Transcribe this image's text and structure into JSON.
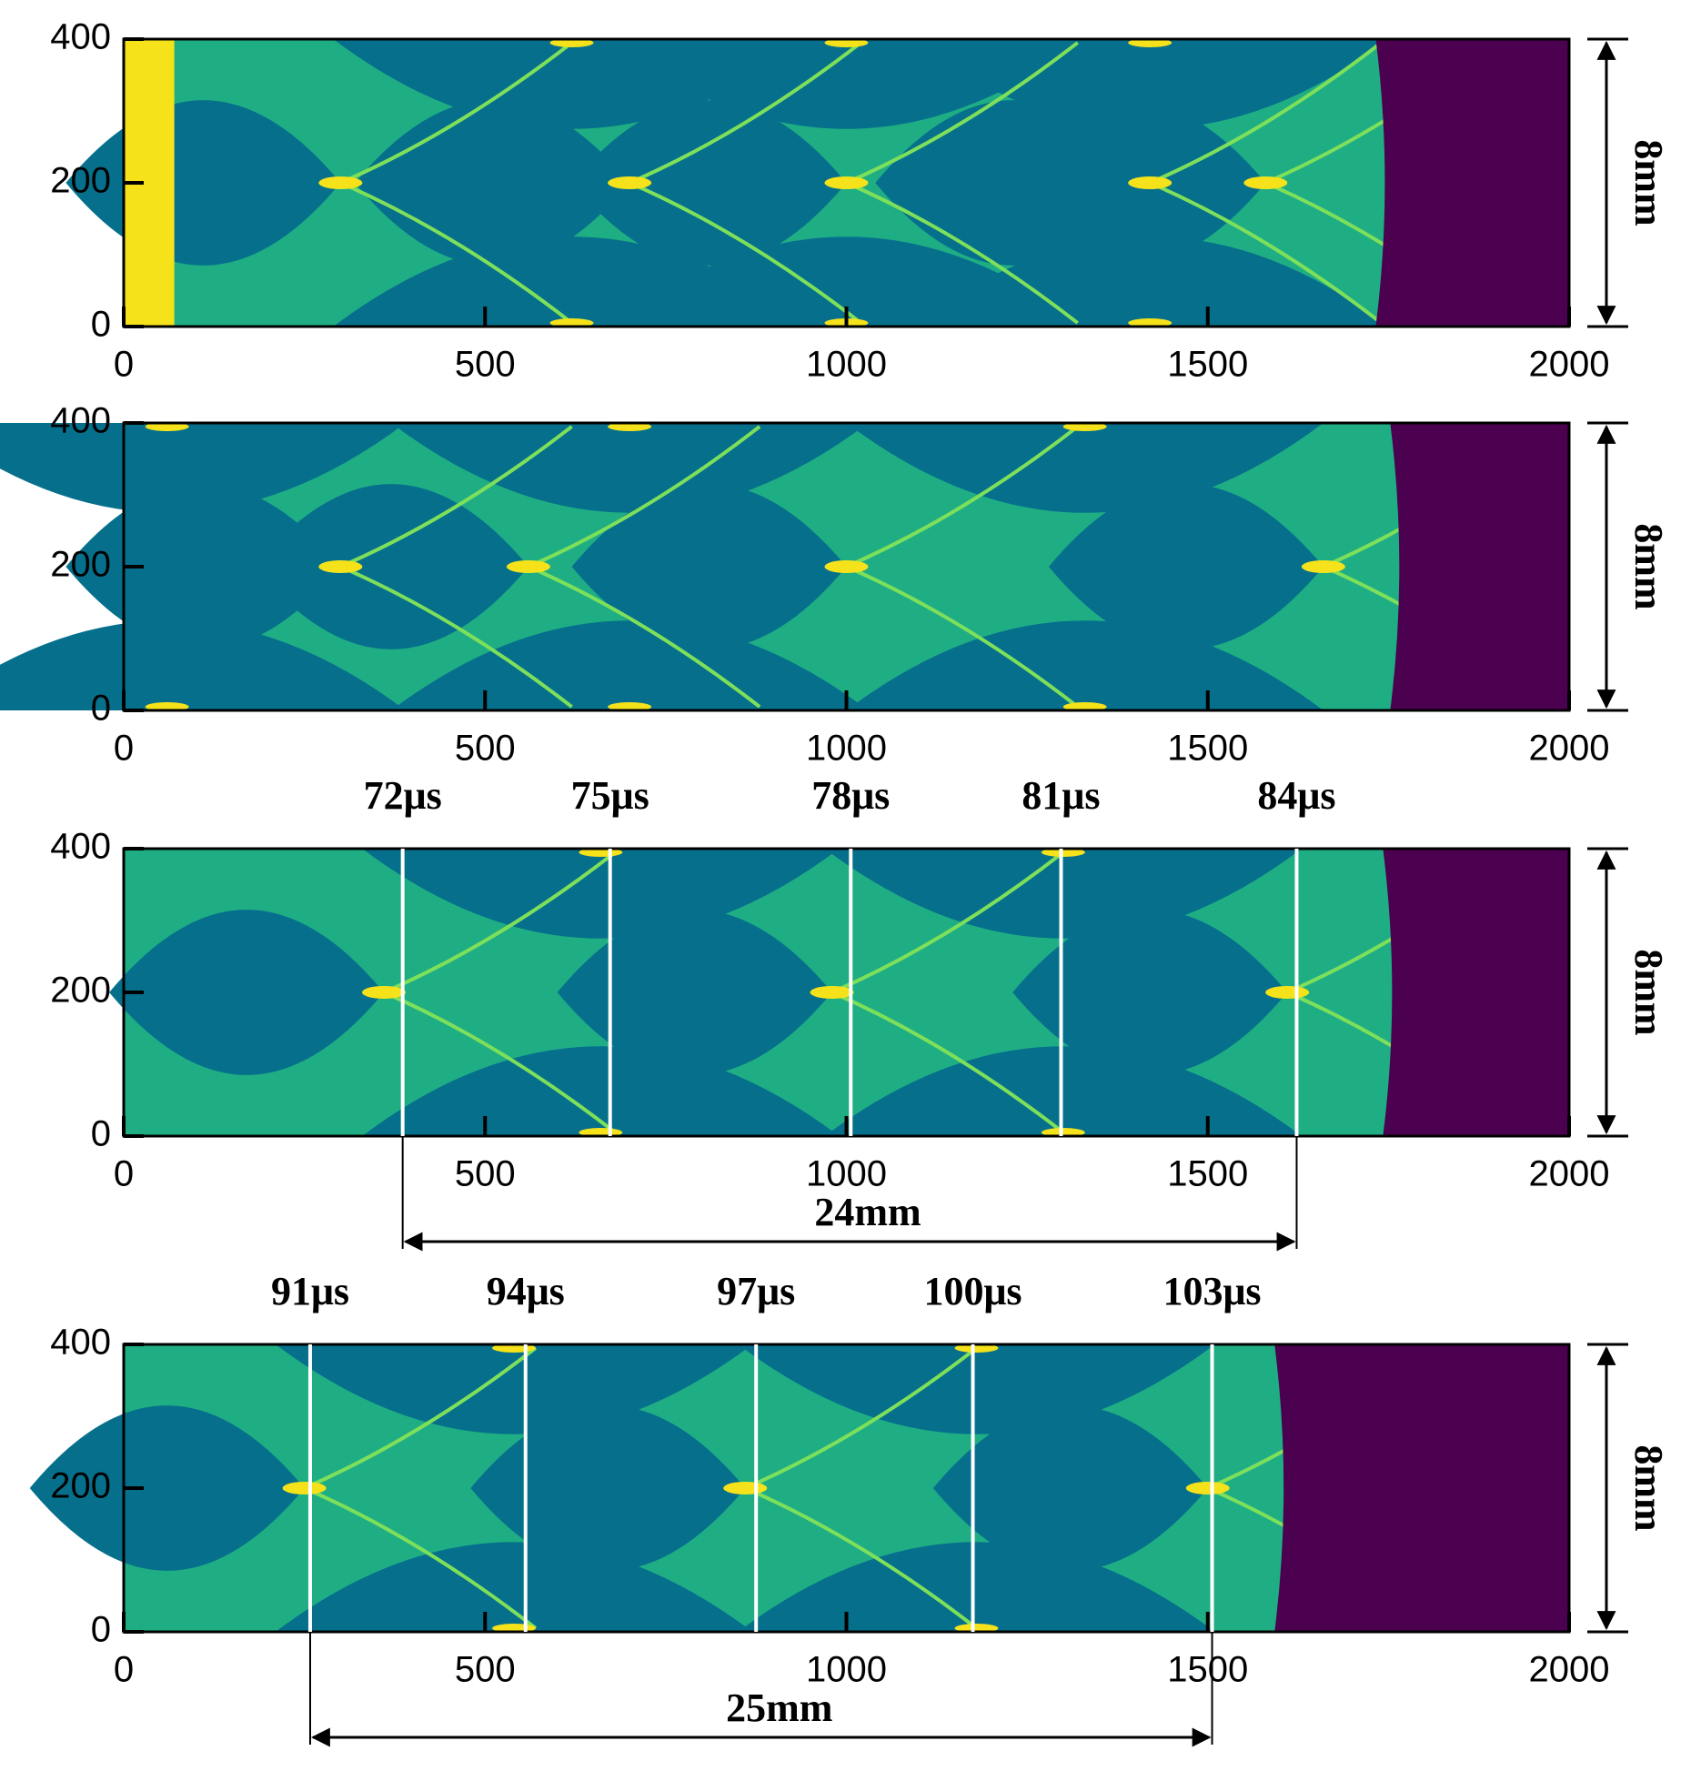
{
  "chart_data": [
    {
      "type": "contour",
      "xlim": [
        0,
        2000
      ],
      "ylim": [
        0,
        400
      ],
      "xticks": [
        0,
        500,
        1000,
        1500,
        2000
      ],
      "yticks": [
        0,
        200,
        400
      ],
      "height_label": "8mm"
    },
    {
      "type": "contour",
      "xlim": [
        0,
        2000
      ],
      "ylim": [
        0,
        400
      ],
      "xticks": [
        0,
        500,
        1000,
        1500,
        2000
      ],
      "yticks": [
        0,
        200,
        400
      ],
      "height_label": "8mm"
    },
    {
      "type": "contour",
      "xlim": [
        0,
        2000
      ],
      "ylim": [
        0,
        400
      ],
      "xticks": [
        0,
        500,
        1000,
        1500,
        2000
      ],
      "yticks": [
        0,
        200,
        400
      ],
      "height_label": "8mm",
      "time_markers": [
        {
          "x": 386,
          "label": "72μs"
        },
        {
          "x": 673,
          "label": "75μs"
        },
        {
          "x": 1006,
          "label": "78μs"
        },
        {
          "x": 1297,
          "label": "81μs"
        },
        {
          "x": 1623,
          "label": "84μs"
        }
      ],
      "span": {
        "from": 386,
        "to": 1623,
        "label": "24mm"
      }
    },
    {
      "type": "contour",
      "xlim": [
        0,
        2000
      ],
      "ylim": [
        0,
        400
      ],
      "xticks": [
        0,
        500,
        1000,
        1500,
        2000
      ],
      "yticks": [
        0,
        200,
        400
      ],
      "height_label": "8mm",
      "time_markers": [
        {
          "x": 258,
          "label": "91μs"
        },
        {
          "x": 556,
          "label": "94μs"
        },
        {
          "x": 875,
          "label": "97μs"
        },
        {
          "x": 1175,
          "label": "100μs"
        },
        {
          "x": 1506,
          "label": "103μs"
        }
      ],
      "span": {
        "from": 258,
        "to": 1506,
        "label": "25mm"
      }
    }
  ]
}
